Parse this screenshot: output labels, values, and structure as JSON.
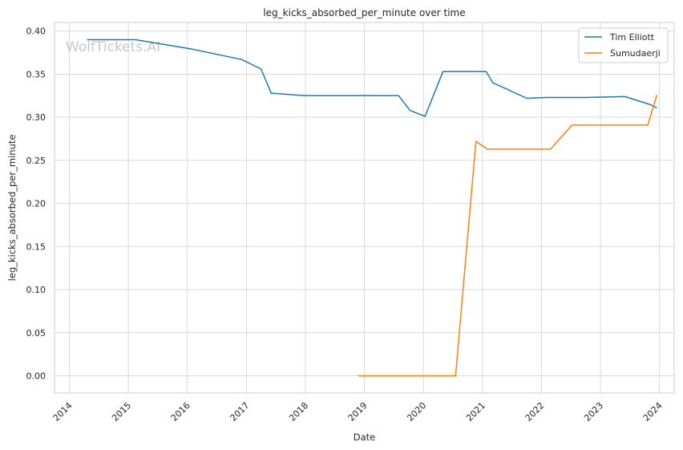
{
  "chart_data": {
    "type": "line",
    "title": "leg_kicks_absorbed_per_minute over time",
    "xlabel": "Date",
    "ylabel": "leg_kicks_absorbed_per_minute",
    "watermark": "WolfTickets.AI",
    "xlim": [
      "2013-10-01",
      "2024-04-01"
    ],
    "ylim": [
      -0.02,
      0.41
    ],
    "x_ticks": [
      "2014",
      "2015",
      "2016",
      "2017",
      "2018",
      "2019",
      "2020",
      "2021",
      "2022",
      "2023",
      "2024"
    ],
    "y_ticks": [
      "0.00",
      "0.05",
      "0.10",
      "0.15",
      "0.20",
      "0.25",
      "0.30",
      "0.35",
      "0.40"
    ],
    "y_tick_values": [
      0,
      0.05,
      0.1,
      0.15,
      0.2,
      0.25,
      0.3,
      0.35,
      0.4
    ],
    "grid": true,
    "legend_position": "top-right",
    "series": [
      {
        "name": "Tim Elliott",
        "color": "#1f77b4",
        "points": [
          [
            "2014-04-20",
            0.39
          ],
          [
            "2015-02-15",
            0.39
          ],
          [
            "2016-02-01",
            0.379
          ],
          [
            "2016-12-03",
            0.367
          ],
          [
            "2017-04-01",
            0.356
          ],
          [
            "2017-06-03",
            0.328
          ],
          [
            "2017-12-30",
            0.325
          ],
          [
            "2019-08-01",
            0.325
          ],
          [
            "2019-10-10",
            0.308
          ],
          [
            "2020-01-11",
            0.301
          ],
          [
            "2020-05-01",
            0.353
          ],
          [
            "2021-01-23",
            0.353
          ],
          [
            "2021-03-06",
            0.34
          ],
          [
            "2021-10-02",
            0.322
          ],
          [
            "2022-02-01",
            0.323
          ],
          [
            "2022-10-01",
            0.323
          ],
          [
            "2023-06-01",
            0.324
          ],
          [
            "2023-11-01",
            0.315
          ],
          [
            "2023-12-16",
            0.311
          ]
        ]
      },
      {
        "name": "Sumudaerji",
        "color": "#ff7f0e",
        "points": [
          [
            "2018-11-24",
            0.0
          ],
          [
            "2020-07-18",
            0.0
          ],
          [
            "2020-11-21",
            0.272
          ],
          [
            "2021-01-30",
            0.263
          ],
          [
            "2022-02-26",
            0.263
          ],
          [
            "2022-07-09",
            0.291
          ],
          [
            "2023-10-21",
            0.291
          ],
          [
            "2023-12-16",
            0.326
          ]
        ]
      }
    ]
  }
}
